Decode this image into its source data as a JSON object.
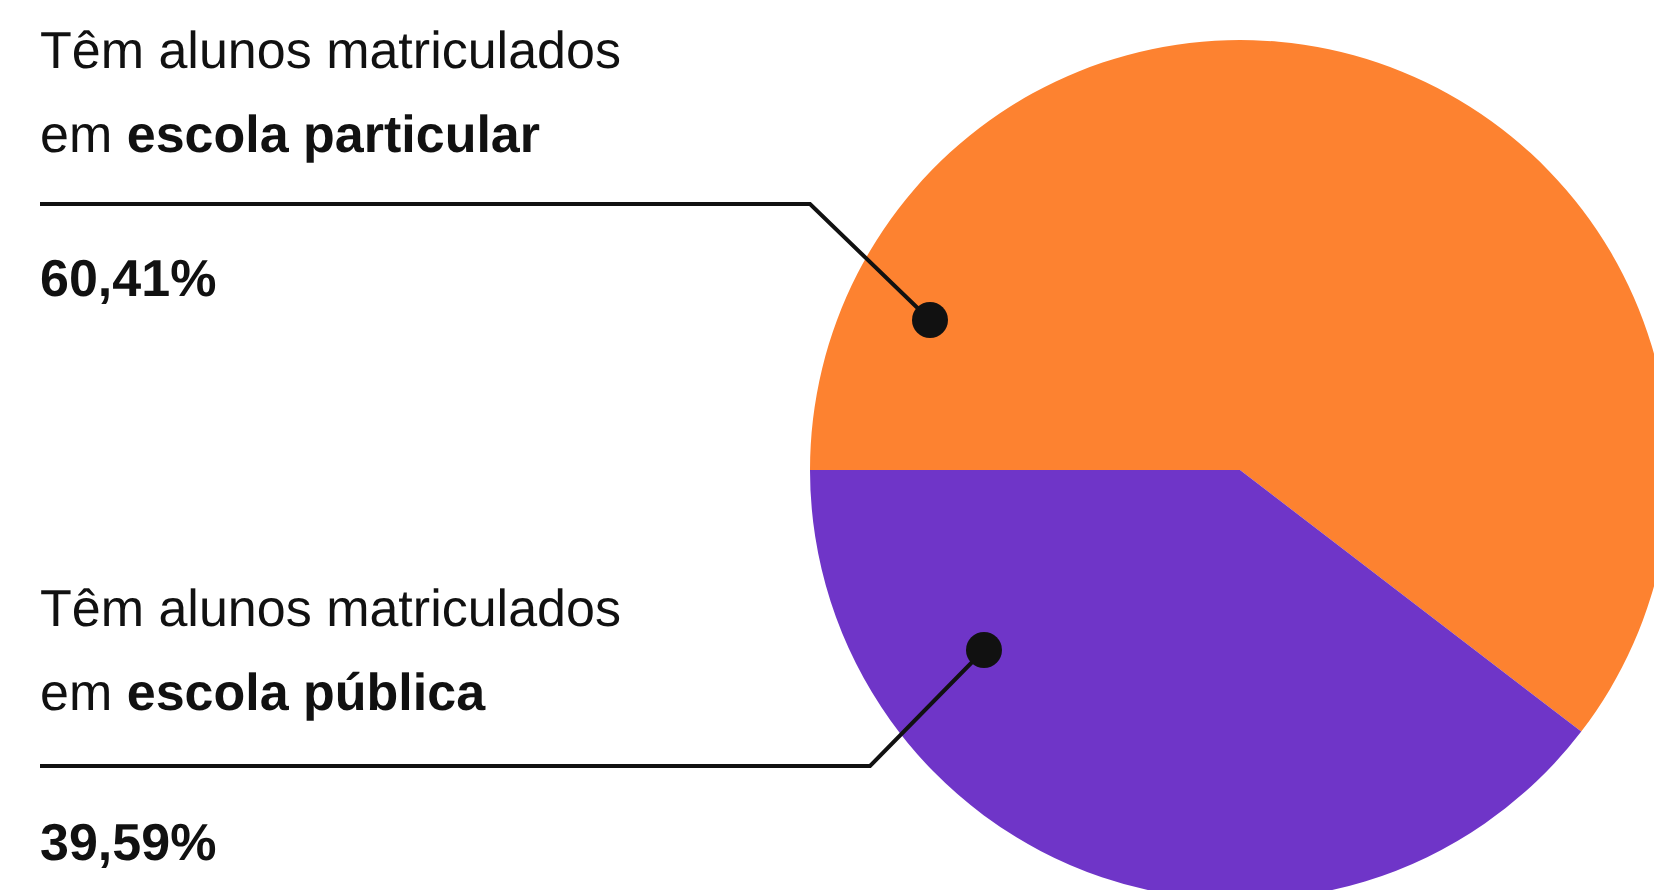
{
  "chart_data": {
    "type": "pie",
    "categories": [
      "Têm alunos matriculados em escola particular",
      "Têm alunos matriculados em escola pública"
    ],
    "values": [
      60.41,
      39.59
    ],
    "colors": [
      "#fd8230",
      "#6f35c8"
    ],
    "value_labels": [
      "60,41%",
      "39,59%"
    ]
  }
}
